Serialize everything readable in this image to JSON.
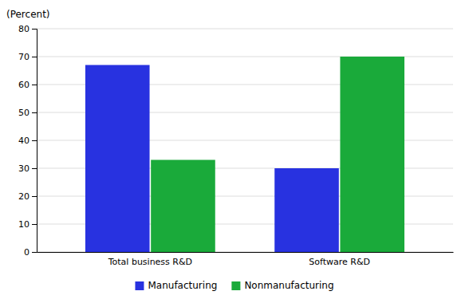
{
  "chart_data": {
    "type": "bar",
    "ylabel": "(Percent)",
    "categories": [
      "Total business R&D",
      "Software R&D"
    ],
    "series": [
      {
        "name": "Manufacturing",
        "color": "#2832e0",
        "values": [
          67,
          30
        ]
      },
      {
        "name": "Nonmanufacturing",
        "color": "#1aaa3a",
        "values": [
          33,
          70
        ]
      }
    ],
    "ylim": [
      0,
      80
    ],
    "yticks": [
      0,
      10,
      20,
      30,
      40,
      50,
      60,
      70,
      80
    ],
    "grid": true,
    "legend": "bottom"
  }
}
